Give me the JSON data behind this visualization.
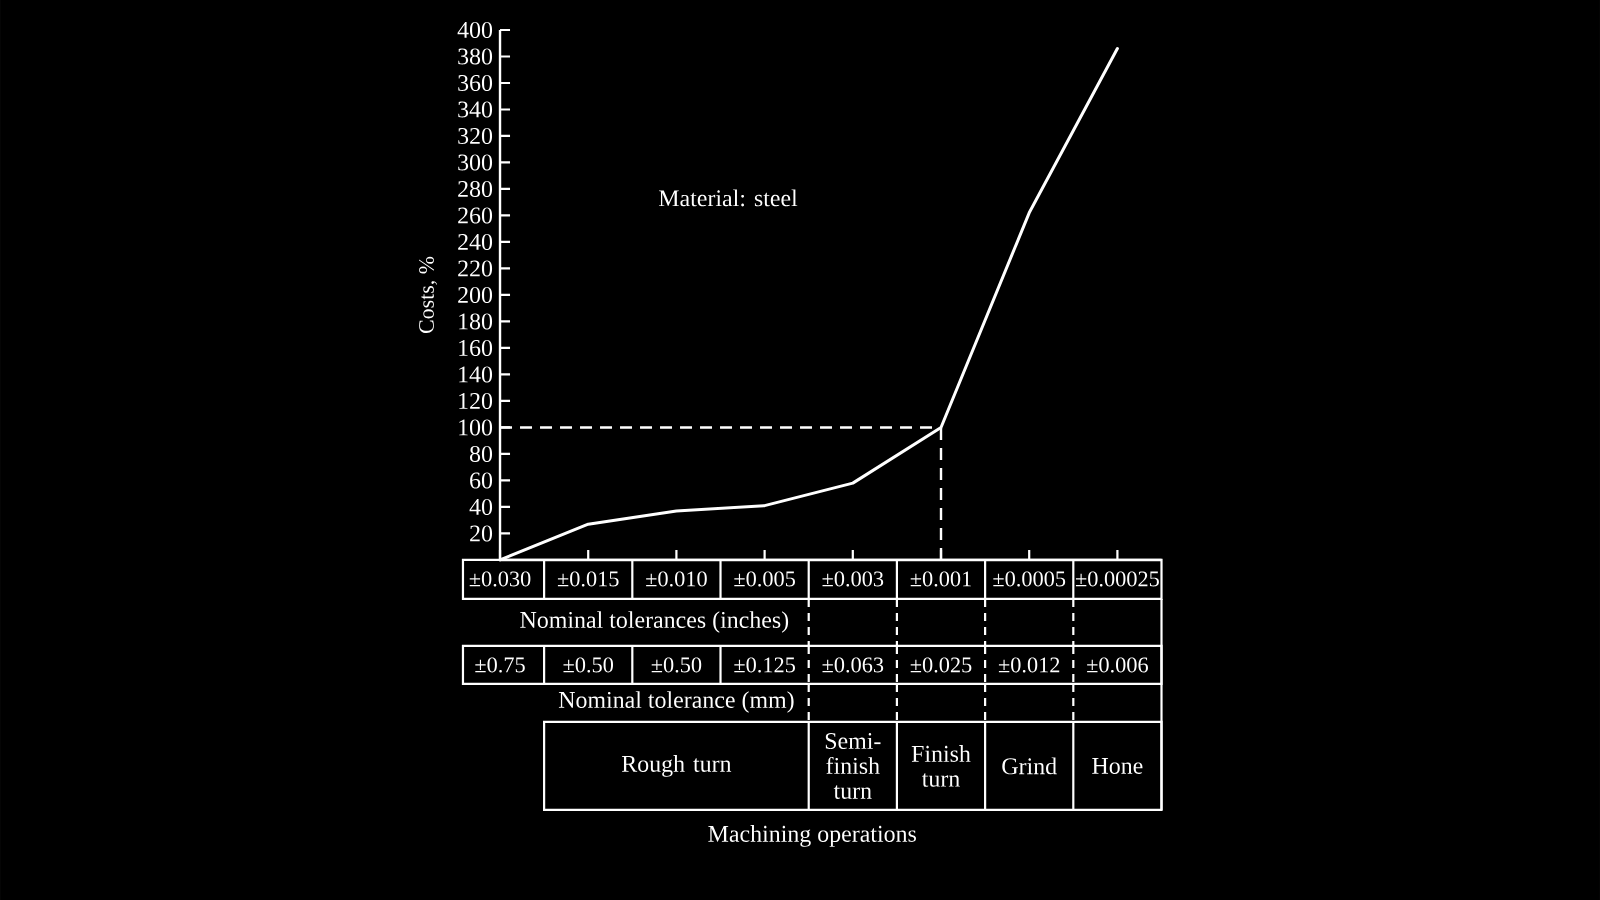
{
  "chart_data": {
    "type": "line",
    "categories": [
      "±0.030",
      "±0.015",
      "±0.010",
      "±0.005",
      "±0.003",
      "±0.001",
      "±0.0005",
      "±0.00025"
    ],
    "values": [
      0,
      27,
      37,
      41,
      58,
      100,
      262,
      386
    ],
    "color": "#ffffff",
    "xlabel": "Nominal tolerances (inches)",
    "ylabel": "Costs, %",
    "ylim": [
      0,
      400
    ],
    "yticks": [
      20,
      40,
      60,
      80,
      100,
      120,
      140,
      160,
      180,
      200,
      220,
      240,
      260,
      280,
      300,
      320,
      340,
      360,
      380,
      400
    ],
    "ref_lines": [
      {
        "axis": "y",
        "value": 100,
        "line_style": "dashed"
      },
      {
        "axis": "x",
        "value": "±0.001",
        "line_style": "dashed"
      }
    ],
    "annotations": [
      "Material: steel",
      "Nominal tolerance (mm)",
      "±0.75",
      "±0.50",
      "±0.50",
      "±0.125",
      "±0.063",
      "±0.025",
      "±0.012",
      "±0.006",
      "Rough turn",
      "Semi-finish turn",
      "Finish turn",
      "Grind",
      "Hone",
      "Machining operations"
    ]
  }
}
